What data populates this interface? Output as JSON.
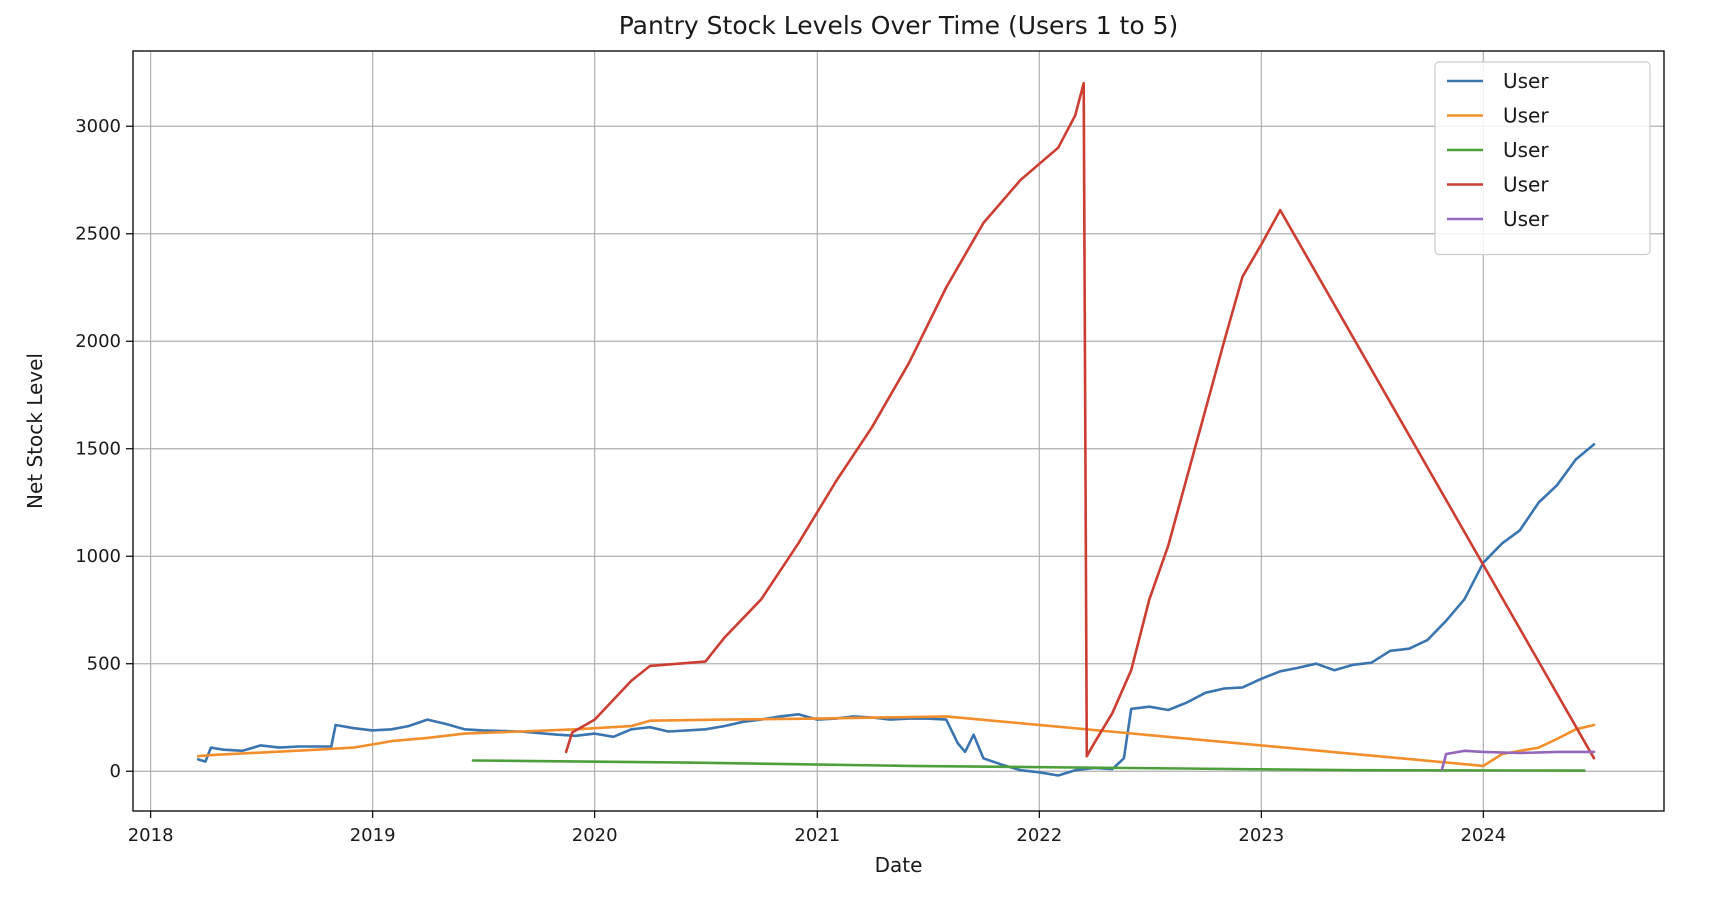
{
  "chart_data": {
    "type": "line",
    "title": "Pantry Stock Levels Over Time (Users 1 to 5)",
    "xlabel": "Date",
    "ylabel": "Net Stock Level",
    "x_axis_type": "date",
    "xlim": [
      "2017-12-03",
      "2024-10-24"
    ],
    "ylim": [
      -185,
      3350
    ],
    "x_ticks": [
      "2018",
      "2019",
      "2020",
      "2021",
      "2022",
      "2023",
      "2024"
    ],
    "y_ticks": [
      0,
      500,
      1000,
      1500,
      2000,
      2500,
      3000
    ],
    "grid": true,
    "legend_position": "top-right",
    "series": [
      {
        "name": "User",
        "color": "#3b75af",
        "points": [
          [
            "2018-03-20",
            55
          ],
          [
            "2018-04-01",
            45
          ],
          [
            "2018-04-10",
            110
          ],
          [
            "2018-05-01",
            100
          ],
          [
            "2018-06-01",
            95
          ],
          [
            "2018-07-01",
            120
          ],
          [
            "2018-08-01",
            110
          ],
          [
            "2018-09-01",
            115
          ],
          [
            "2018-10-25",
            115
          ],
          [
            "2018-11-01",
            215
          ],
          [
            "2018-12-01",
            200
          ],
          [
            "2019-01-01",
            190
          ],
          [
            "2019-02-01",
            195
          ],
          [
            "2019-03-01",
            210
          ],
          [
            "2019-04-01",
            240
          ],
          [
            "2019-05-01",
            220
          ],
          [
            "2019-06-01",
            195
          ],
          [
            "2019-07-01",
            190
          ],
          [
            "2019-09-01",
            185
          ],
          [
            "2019-11-01",
            170
          ],
          [
            "2019-12-01",
            165
          ],
          [
            "2020-01-01",
            175
          ],
          [
            "2020-02-01",
            160
          ],
          [
            "2020-03-01",
            195
          ],
          [
            "2020-04-01",
            205
          ],
          [
            "2020-05-01",
            185
          ],
          [
            "2020-06-01",
            190
          ],
          [
            "2020-07-01",
            195
          ],
          [
            "2020-08-01",
            210
          ],
          [
            "2020-09-01",
            230
          ],
          [
            "2020-10-01",
            240
          ],
          [
            "2020-11-01",
            255
          ],
          [
            "2020-12-01",
            265
          ],
          [
            "2021-01-01",
            240
          ],
          [
            "2021-02-01",
            245
          ],
          [
            "2021-03-01",
            255
          ],
          [
            "2021-04-01",
            250
          ],
          [
            "2021-05-01",
            240
          ],
          [
            "2021-06-01",
            245
          ],
          [
            "2021-07-01",
            245
          ],
          [
            "2021-08-01",
            240
          ],
          [
            "2021-08-20",
            130
          ],
          [
            "2021-09-01",
            90
          ],
          [
            "2021-09-15",
            170
          ],
          [
            "2021-10-01",
            60
          ],
          [
            "2021-11-01",
            30
          ],
          [
            "2021-12-01",
            5
          ],
          [
            "2022-01-01",
            -5
          ],
          [
            "2022-02-01",
            -20
          ],
          [
            "2022-03-01",
            5
          ],
          [
            "2022-04-01",
            15
          ],
          [
            "2022-05-01",
            10
          ],
          [
            "2022-05-20",
            60
          ],
          [
            "2022-06-01",
            290
          ],
          [
            "2022-07-01",
            300
          ],
          [
            "2022-08-01",
            285
          ],
          [
            "2022-09-01",
            320
          ],
          [
            "2022-10-01",
            365
          ],
          [
            "2022-11-01",
            385
          ],
          [
            "2022-12-01",
            390
          ],
          [
            "2023-01-01",
            430
          ],
          [
            "2023-02-01",
            465
          ],
          [
            "2023-03-01",
            480
          ],
          [
            "2023-04-01",
            500
          ],
          [
            "2023-05-01",
            470
          ],
          [
            "2023-06-01",
            495
          ],
          [
            "2023-07-01",
            505
          ],
          [
            "2023-08-01",
            560
          ],
          [
            "2023-09-01",
            570
          ],
          [
            "2023-10-01",
            610
          ],
          [
            "2023-11-01",
            700
          ],
          [
            "2023-12-01",
            800
          ],
          [
            "2024-01-01",
            970
          ],
          [
            "2024-02-01",
            1060
          ],
          [
            "2024-03-01",
            1120
          ],
          [
            "2024-04-01",
            1250
          ],
          [
            "2024-05-01",
            1330
          ],
          [
            "2024-06-01",
            1450
          ],
          [
            "2024-07-01",
            1520
          ]
        ]
      },
      {
        "name": "User",
        "color": "#f28e2b",
        "points": [
          [
            "2018-03-20",
            70
          ],
          [
            "2018-04-10",
            75
          ],
          [
            "2018-10-01",
            100
          ],
          [
            "2018-12-01",
            110
          ],
          [
            "2019-01-01",
            125
          ],
          [
            "2019-02-01",
            140
          ],
          [
            "2019-04-01",
            155
          ],
          [
            "2019-06-01",
            175
          ],
          [
            "2019-09-01",
            185
          ],
          [
            "2019-12-01",
            195
          ],
          [
            "2020-03-01",
            210
          ],
          [
            "2020-04-01",
            235
          ],
          [
            "2020-08-01",
            240
          ],
          [
            "2021-01-01",
            245
          ],
          [
            "2021-08-01",
            255
          ],
          [
            "2024-01-01",
            25
          ],
          [
            "2024-02-01",
            80
          ],
          [
            "2024-04-01",
            110
          ],
          [
            "2024-05-01",
            150
          ],
          [
            "2024-06-01",
            195
          ],
          [
            "2024-07-01",
            215
          ]
        ]
      },
      {
        "name": "User",
        "color": "#4c9f3a",
        "points": [
          [
            "2019-06-15",
            50
          ],
          [
            "2020-06-01",
            40
          ],
          [
            "2021-06-01",
            25
          ],
          [
            "2022-06-01",
            15
          ],
          [
            "2023-06-01",
            5
          ],
          [
            "2024-06-15",
            3
          ]
        ]
      },
      {
        "name": "User",
        "color": "#cc3d32",
        "points": [
          [
            "2019-11-15",
            90
          ],
          [
            "2019-11-25",
            180
          ],
          [
            "2020-01-01",
            240
          ],
          [
            "2020-03-01",
            420
          ],
          [
            "2020-04-01",
            490
          ],
          [
            "2020-07-01",
            510
          ],
          [
            "2020-08-01",
            620
          ],
          [
            "2020-10-01",
            800
          ],
          [
            "2020-12-01",
            1060
          ],
          [
            "2021-02-01",
            1350
          ],
          [
            "2021-04-01",
            1600
          ],
          [
            "2021-06-01",
            1900
          ],
          [
            "2021-08-01",
            2250
          ],
          [
            "2021-10-01",
            2550
          ],
          [
            "2021-12-01",
            2750
          ],
          [
            "2022-02-01",
            2900
          ],
          [
            "2022-03-01",
            3050
          ],
          [
            "2022-03-15",
            3200
          ],
          [
            "2022-03-20",
            70
          ],
          [
            "2022-04-01",
            130
          ],
          [
            "2022-05-01",
            270
          ],
          [
            "2022-06-01",
            470
          ],
          [
            "2022-07-01",
            800
          ],
          [
            "2022-08-01",
            1050
          ],
          [
            "2022-09-01",
            1370
          ],
          [
            "2022-10-01",
            1680
          ],
          [
            "2022-11-01",
            2000
          ],
          [
            "2022-12-01",
            2300
          ],
          [
            "2023-01-01",
            2450
          ],
          [
            "2023-02-01",
            2610
          ],
          [
            "2024-07-01",
            60
          ]
        ]
      },
      {
        "name": "User",
        "color": "#9467bd",
        "points": [
          [
            "2023-10-25",
            10
          ],
          [
            "2023-11-01",
            80
          ],
          [
            "2023-12-01",
            95
          ],
          [
            "2024-01-01",
            90
          ],
          [
            "2024-03-01",
            85
          ],
          [
            "2024-05-01",
            90
          ],
          [
            "2024-07-01",
            90
          ]
        ]
      }
    ]
  }
}
